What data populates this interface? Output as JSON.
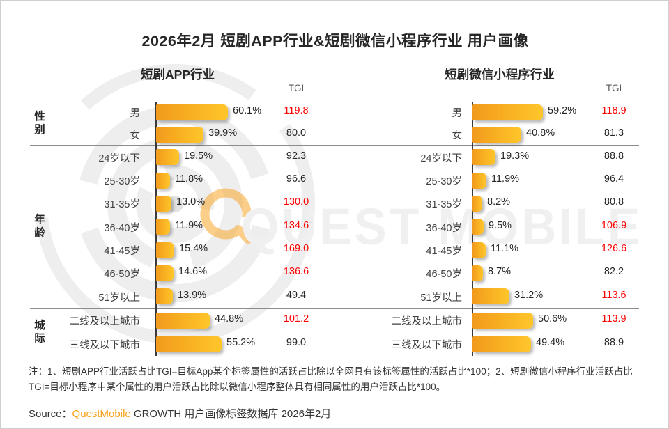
{
  "title": "2026年2月 短剧APP行业&短剧微信小程序行业 用户画像",
  "tgi_header": "TGI",
  "panels": [
    {
      "title": "短剧APP行业"
    },
    {
      "title": "短剧微信小程序行业"
    }
  ],
  "chart_data": {
    "type": "bar",
    "orientation": "horizontal",
    "categories": [
      "男",
      "女",
      "24岁以下",
      "25-30岁",
      "31-35岁",
      "36-40岁",
      "41-45岁",
      "46-50岁",
      "51岁以上",
      "二线及以上城市",
      "三线及以下城市"
    ],
    "groups": [
      {
        "label": "性别",
        "row_indexes": [
          0,
          1
        ]
      },
      {
        "label": "年龄",
        "row_indexes": [
          2,
          3,
          4,
          5,
          6,
          7,
          8
        ]
      },
      {
        "label": "城际",
        "row_indexes": [
          9,
          10
        ]
      }
    ],
    "value_suffix": "%",
    "tgi_red_threshold": 100,
    "series": [
      {
        "name": "短剧APP行业",
        "values": [
          60.1,
          39.9,
          19.5,
          11.8,
          13.0,
          11.9,
          15.4,
          14.6,
          13.9,
          44.8,
          55.2
        ],
        "tgi": [
          119.8,
          80.0,
          92.3,
          96.6,
          130.0,
          134.6,
          169.0,
          136.6,
          49.4,
          101.2,
          99.0
        ]
      },
      {
        "name": "短剧微信小程序行业",
        "values": [
          59.2,
          40.8,
          19.3,
          11.9,
          8.2,
          9.5,
          11.1,
          8.7,
          31.2,
          50.6,
          49.4
        ],
        "tgi": [
          118.9,
          81.3,
          88.8,
          96.4,
          80.8,
          106.9,
          126.6,
          82.2,
          113.6,
          113.9,
          88.9
        ]
      }
    ]
  },
  "watermark": {
    "text": "QUEST MOBILE"
  },
  "footnote": "注：1、短剧APP行业活跃占比TGI=目标App某个标签属性的活跃占比除以全网具有该标签属性的活跃占比*100；2、短剧微信小程序行业活跃占比TGI=目标小程序中某个属性的用户活跃占比除以微信小程序整体具有相同属性的用户活跃占比*100。",
  "source": {
    "prefix": "Source：",
    "brand": "QuestMobile",
    "suffix": " GROWTH 用户画像标签数据库 2026年2月"
  },
  "colors": {
    "bar_gradient_start": "#F19A1E",
    "bar_gradient_end": "#FFC62B",
    "tgi_high": "#FF0000",
    "brand_orange": "#F9A11B",
    "text_dark": "#262626",
    "divider_gray": "#8C8C8C"
  }
}
